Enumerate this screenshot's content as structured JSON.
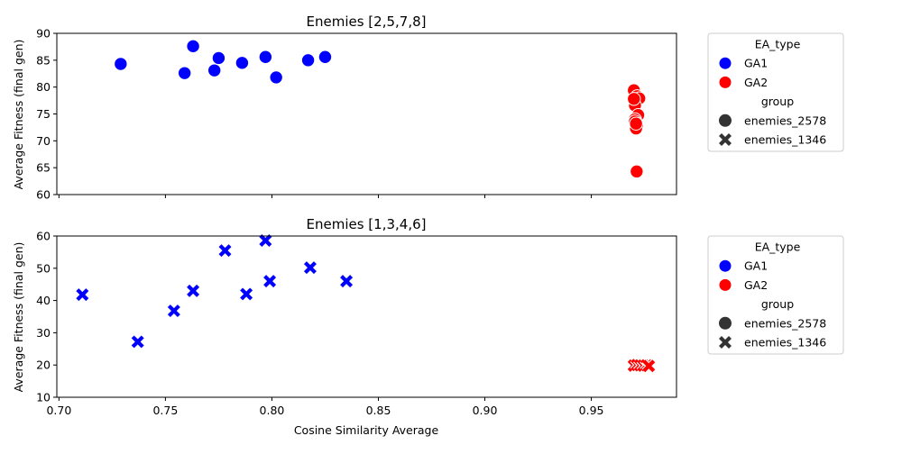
{
  "chart_data": [
    {
      "type": "scatter",
      "title": "Enemies [2,5,7,8]",
      "xlabel": "",
      "ylabel": "Average Fitness (final gen)",
      "xlim": [
        0.699,
        0.99
      ],
      "ylim": [
        60,
        90
      ],
      "yticks": [
        60,
        65,
        70,
        75,
        80,
        85,
        90
      ],
      "xticks": [
        0.7,
        0.75,
        0.8,
        0.85,
        0.9,
        0.95
      ],
      "xtick_labels_shown": false,
      "grid": false,
      "legend_position": "outside-right",
      "series": [
        {
          "name": "GA1",
          "marker": "circle",
          "color": "#0000ff",
          "x": [
            0.729,
            0.759,
            0.763,
            0.773,
            0.775,
            0.786,
            0.797,
            0.802,
            0.817,
            0.825
          ],
          "y": [
            84.3,
            82.6,
            87.6,
            83.1,
            85.4,
            84.5,
            85.6,
            81.8,
            85.0,
            85.6
          ]
        },
        {
          "name": "GA2",
          "marker": "circle",
          "color": "#ff0000",
          "x": [
            0.97,
            0.9715,
            0.9725,
            0.9705,
            0.972,
            0.97,
            0.9705,
            0.9715,
            0.971,
            0.9705,
            0.971,
            0.9713
          ],
          "y": [
            79.4,
            78.3,
            77.9,
            76.6,
            74.8,
            77.8,
            74.0,
            72.7,
            72.3,
            73.6,
            73.2,
            64.3
          ]
        }
      ]
    },
    {
      "type": "scatter",
      "title": "Enemies [1,3,4,6]",
      "xlabel": "Cosine Similarity Average",
      "ylabel": "Average Fitness (final gen)",
      "xlim": [
        0.699,
        0.99
      ],
      "ylim": [
        10,
        60
      ],
      "yticks": [
        10,
        20,
        30,
        40,
        50,
        60
      ],
      "xticks": [
        0.7,
        0.75,
        0.8,
        0.85,
        0.9,
        0.95
      ],
      "xtick_labels_shown": true,
      "grid": false,
      "legend_position": "outside-right",
      "series": [
        {
          "name": "GA1",
          "marker": "x",
          "color": "#0000ff",
          "x": [
            0.711,
            0.737,
            0.754,
            0.763,
            0.778,
            0.788,
            0.797,
            0.799,
            0.818,
            0.835
          ],
          "y": [
            41.8,
            27.2,
            36.8,
            43.0,
            55.5,
            42.0,
            58.6,
            46.0,
            50.2,
            46.0
          ]
        },
        {
          "name": "GA2",
          "marker": "x",
          "color": "#ff0000",
          "x": [
            0.97,
            0.9715,
            0.973,
            0.9745,
            0.976,
            0.977
          ],
          "y": [
            19.8,
            20.0,
            19.9,
            19.8,
            19.9,
            19.7
          ]
        }
      ]
    }
  ],
  "legend": {
    "hue_title": "EA_type",
    "hue_items": [
      {
        "label": "GA1",
        "color": "#0000ff"
      },
      {
        "label": "GA2",
        "color": "#ff0000"
      }
    ],
    "style_title": "group",
    "style_items": [
      {
        "label": "enemies_2578",
        "marker": "circle"
      },
      {
        "label": "enemies_1346",
        "marker": "x"
      }
    ]
  }
}
